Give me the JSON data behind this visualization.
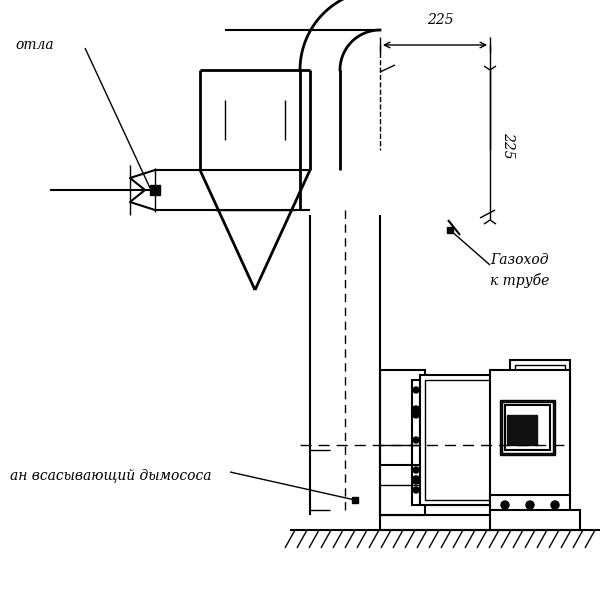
{
  "bg_color": "#ffffff",
  "line_color": "#000000",
  "title": "",
  "label_kotla": "отла",
  "label_gazohod": "Газоход\nк трубе",
  "label_vsan": "ан всасывающий дымососа",
  "dim_225": "225",
  "fig_width": 6.0,
  "fig_height": 6.0,
  "dpi": 100
}
